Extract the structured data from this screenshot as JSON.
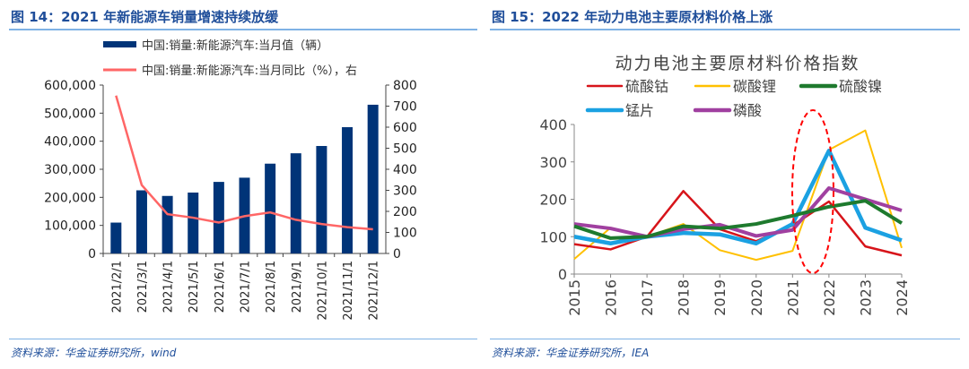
{
  "left": {
    "title": "图 14：2021 年新能源车销量增速持续放缓",
    "source": "资料来源：华金证券研究所，wind",
    "chart_data": {
      "type": "bar+line",
      "categories": [
        "2021/2/1",
        "2021/3/1",
        "2021/4/1",
        "2021/5/1",
        "2021/6/1",
        "2021/7/1",
        "2021/8/1",
        "2021/9/1",
        "2021/10/1",
        "2021/11/1",
        "2021/12/1"
      ],
      "series": [
        {
          "name": "中国:销量:新能源汽车:当月值（辆）",
          "type": "bar",
          "axis": "left",
          "color": "#003478",
          "values": [
            110000,
            225000,
            205000,
            217000,
            255000,
            270000,
            320000,
            357000,
            383000,
            450000,
            530000
          ]
        },
        {
          "name": "中国:销量:新能源汽车:当月同比（%），右",
          "type": "line",
          "axis": "right",
          "color": "#ff6666",
          "values": [
            750,
            325,
            187,
            170,
            147,
            177,
            195,
            160,
            140,
            125,
            115
          ]
        }
      ],
      "ylim_left": [
        0,
        600000
      ],
      "yticks_left": [
        "0",
        "100,000",
        "200,000",
        "300,000",
        "400,000",
        "500,000",
        "600,000"
      ],
      "ylim_right": [
        0,
        800
      ],
      "yticks_right": [
        "0",
        "100",
        "200",
        "300",
        "400",
        "500",
        "600",
        "700",
        "800"
      ],
      "legend": "top",
      "grid": false
    }
  },
  "right": {
    "title": "图 15：2022 年动力电池主要原材料价格上涨",
    "source": "资料来源：华金证券研究所，IEA",
    "chart_data": {
      "type": "line",
      "title": "动力电池主要原材料价格指数",
      "categories": [
        "2015",
        "2016",
        "2017",
        "2018",
        "2019",
        "2020",
        "2021",
        "2022",
        "2023",
        "2024"
      ],
      "series": [
        {
          "name": "硫酸钴",
          "color": "#d7141a",
          "values": [
            80,
            66,
            100,
            222,
            120,
            88,
            130,
            194,
            74,
            50
          ]
        },
        {
          "name": "碳酸锂",
          "color": "#ffc000",
          "values": [
            40,
            124,
            100,
            134,
            64,
            38,
            62,
            332,
            384,
            70
          ]
        },
        {
          "name": "硫酸镍",
          "color": "#1e7a2e",
          "values": [
            128,
            96,
            100,
            128,
            122,
            134,
            156,
            180,
            196,
            136
          ]
        },
        {
          "name": "锰片",
          "color": "#1ba1e2",
          "values": [
            100,
            82,
            100,
            110,
            106,
            82,
            134,
            330,
            124,
            90
          ]
        },
        {
          "name": "磷酸",
          "color": "#a040a0",
          "values": [
            134,
            122,
            100,
            120,
            132,
            102,
            118,
            230,
            200,
            170
          ]
        }
      ],
      "ylim": [
        0,
        400
      ],
      "yticks": [
        "0",
        "100",
        "200",
        "300",
        "400"
      ],
      "legend": "top",
      "grid": false,
      "annotation": "red dashed ellipse around 2021-2022"
    }
  }
}
